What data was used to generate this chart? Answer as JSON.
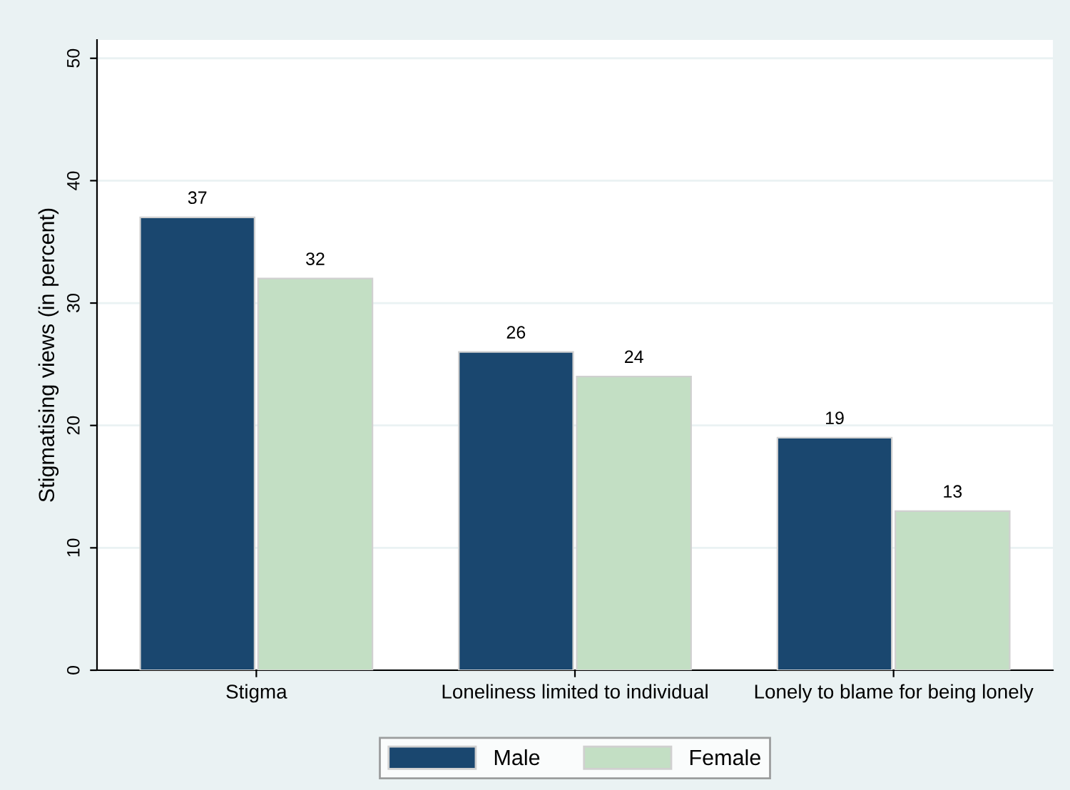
{
  "chart_data": {
    "type": "bar",
    "ylabel": "Stigmatising views (in percent)",
    "categories": [
      "Stigma",
      "Loneliness limited to individual",
      "Lonely to blame for being lonely"
    ],
    "series": [
      {
        "name": "Male",
        "color": "#1a476f",
        "values": [
          37,
          26,
          19
        ]
      },
      {
        "name": "Female",
        "color": "#c3dfc4",
        "values": [
          32,
          24,
          13
        ]
      }
    ],
    "ylim": [
      0,
      51.5
    ],
    "yticks": [
      0,
      10,
      20,
      30,
      40,
      50
    ],
    "grid": "y",
    "legend": "bottom",
    "data_labels": true
  }
}
